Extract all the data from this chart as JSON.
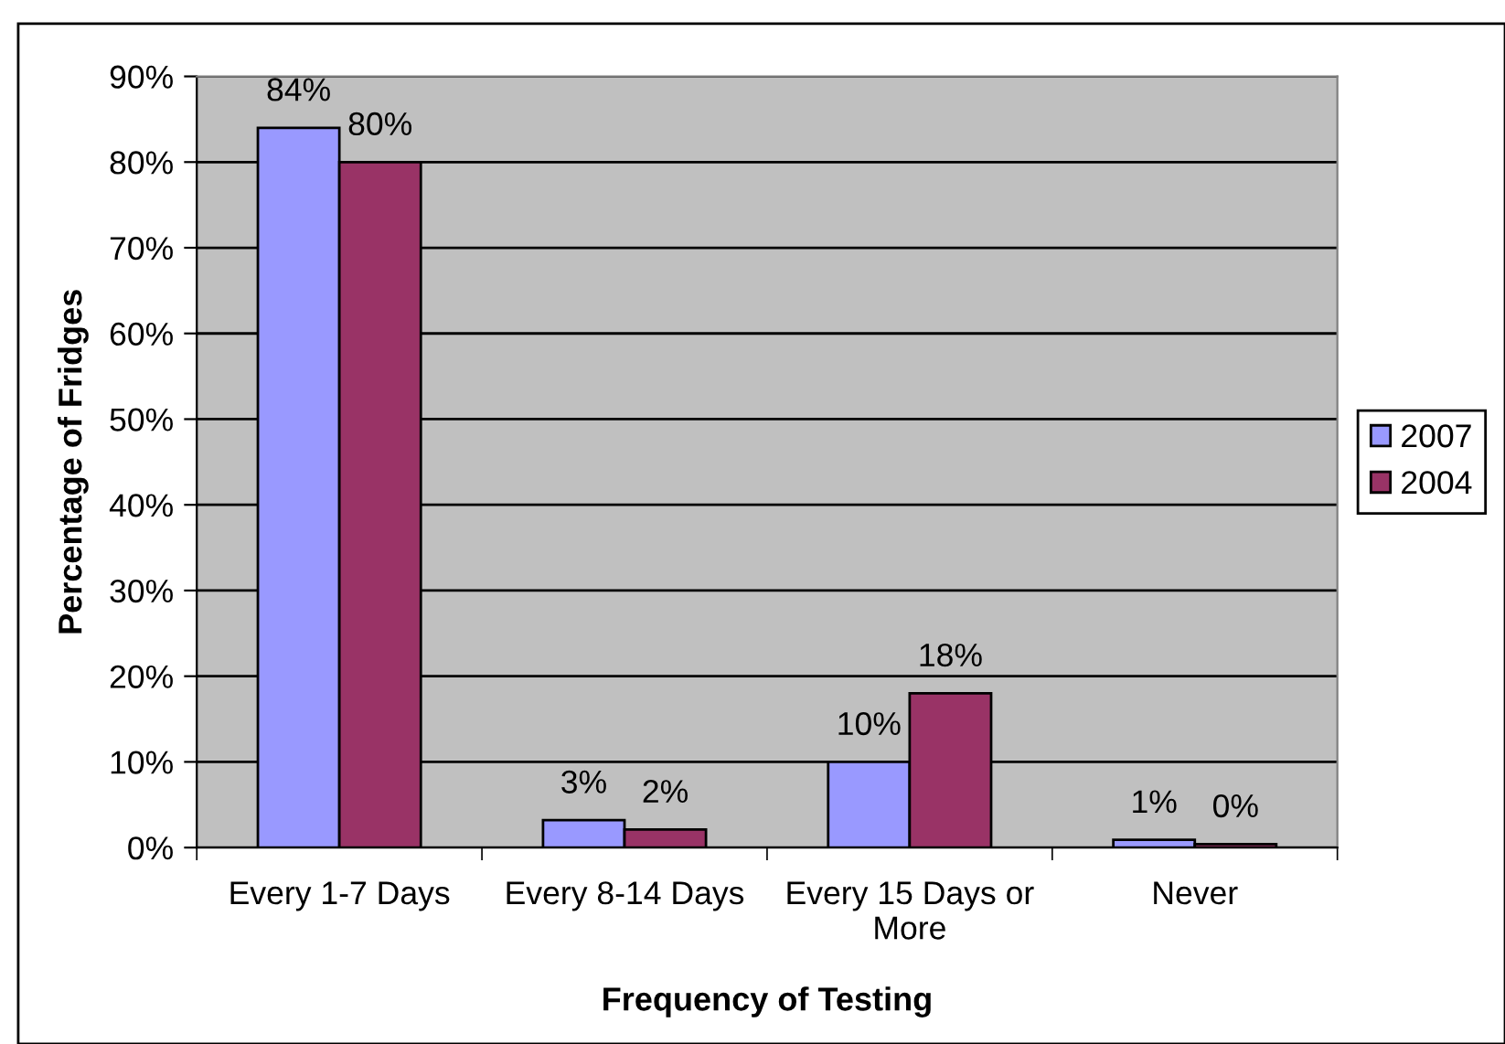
{
  "chart_data": {
    "type": "bar",
    "categories": [
      "Every 1-7 Days",
      "Every 8-14 Days",
      "Every 15 Days or\nMore",
      "Never"
    ],
    "series": [
      {
        "name": "2007",
        "color": "#9999ff",
        "values": [
          84,
          3.2,
          10,
          0.9
        ],
        "value_labels": [
          "84%",
          "3%",
          "10%",
          "1%"
        ]
      },
      {
        "name": "2004",
        "color": "#993366",
        "values": [
          80,
          2.1,
          18,
          0.4
        ],
        "value_labels": [
          "80%",
          "2%",
          "18%",
          "0%"
        ]
      }
    ],
    "xlabel": "Frequency of Testing",
    "ylabel": "Percentage of Fridges",
    "ylim": [
      0,
      90
    ],
    "yticks": [
      {
        "value": 0,
        "label": "0%"
      },
      {
        "value": 10,
        "label": "10%"
      },
      {
        "value": 20,
        "label": "20%"
      },
      {
        "value": 30,
        "label": "30%"
      },
      {
        "value": 40,
        "label": "40%"
      },
      {
        "value": 50,
        "label": "50%"
      },
      {
        "value": 60,
        "label": "60%"
      },
      {
        "value": 70,
        "label": "70%"
      },
      {
        "value": 80,
        "label": "80%"
      },
      {
        "value": 90,
        "label": "90%"
      }
    ],
    "grid": "y",
    "legend": "right"
  }
}
